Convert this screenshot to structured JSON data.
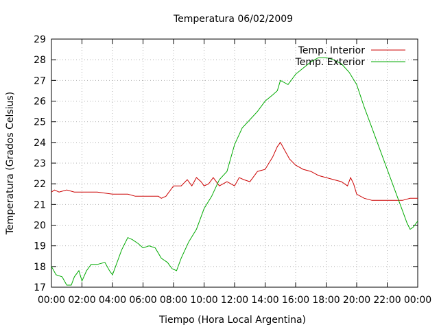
{
  "chart_data": {
    "type": "line",
    "title": "Temperatura 06/02/2009",
    "xlabel": "Tiempo (Hora Local Argentina)",
    "ylabel": "Temperatura (Grados Celsius)",
    "xlim": [
      0,
      24
    ],
    "ylim": [
      17,
      29
    ],
    "x_tick_labels": [
      "00:00",
      "02:00",
      "04:00",
      "06:00",
      "08:00",
      "10:00",
      "12:00",
      "14:00",
      "16:00",
      "18:00",
      "20:00",
      "22:00",
      "00:00"
    ],
    "y_ticks": [
      17,
      18,
      19,
      20,
      21,
      22,
      23,
      24,
      25,
      26,
      27,
      28,
      29
    ],
    "grid": true,
    "legend": "top-right",
    "series": [
      {
        "name": "Temp. Interior",
        "color": "#cc0000",
        "x": [
          0,
          0.2,
          0.5,
          1.0,
          1.5,
          2.0,
          3.0,
          4.0,
          5.0,
          5.5,
          6.0,
          7.0,
          7.2,
          7.5,
          8.0,
          8.5,
          8.9,
          9.2,
          9.5,
          9.8,
          10.0,
          10.3,
          10.6,
          11.0,
          11.5,
          12.0,
          12.3,
          12.6,
          13.0,
          13.5,
          14.0,
          14.5,
          14.8,
          15.0,
          15.3,
          15.6,
          16.0,
          16.5,
          17.0,
          17.5,
          18.0,
          18.5,
          19.0,
          19.4,
          19.6,
          19.8,
          20.0,
          20.5,
          21.0,
          22.0,
          23.0,
          23.5,
          24.0
        ],
        "y": [
          21.6,
          21.7,
          21.6,
          21.7,
          21.6,
          21.6,
          21.6,
          21.5,
          21.5,
          21.4,
          21.4,
          21.4,
          21.3,
          21.4,
          21.9,
          21.9,
          22.2,
          21.9,
          22.3,
          22.1,
          21.9,
          22.0,
          22.3,
          21.9,
          22.1,
          21.9,
          22.3,
          22.2,
          22.1,
          22.6,
          22.7,
          23.3,
          23.8,
          24.0,
          23.6,
          23.2,
          22.9,
          22.7,
          22.6,
          22.4,
          22.3,
          22.2,
          22.1,
          21.9,
          22.3,
          22.0,
          21.5,
          21.3,
          21.2,
          21.2,
          21.2,
          21.3,
          21.3
        ]
      },
      {
        "name": "Temp. Exterior",
        "color": "#00aa00",
        "x": [
          0,
          0.3,
          0.7,
          1.0,
          1.3,
          1.5,
          1.8,
          2.0,
          2.3,
          2.6,
          3.0,
          3.5,
          3.8,
          4.0,
          4.3,
          4.6,
          5.0,
          5.3,
          5.7,
          6.0,
          6.4,
          6.8,
          7.2,
          7.6,
          7.9,
          8.2,
          8.5,
          9.0,
          9.5,
          10.0,
          10.5,
          11.0,
          11.5,
          12.0,
          12.5,
          13.0,
          13.5,
          14.0,
          14.5,
          14.8,
          15.0,
          15.5,
          16.0,
          16.5,
          17.0,
          17.5,
          18.0,
          18.5,
          19.0,
          19.5,
          20.0,
          20.5,
          21.0,
          21.5,
          22.0,
          22.5,
          23.0,
          23.3,
          23.5,
          23.7,
          24.0
        ],
        "y": [
          18.0,
          17.6,
          17.5,
          17.1,
          17.1,
          17.5,
          17.8,
          17.3,
          17.8,
          18.1,
          18.1,
          18.2,
          17.8,
          17.6,
          18.2,
          18.8,
          19.4,
          19.3,
          19.1,
          18.9,
          19.0,
          18.9,
          18.4,
          18.2,
          17.9,
          17.8,
          18.4,
          19.2,
          19.8,
          20.8,
          21.4,
          22.2,
          22.6,
          23.9,
          24.7,
          25.1,
          25.5,
          26.0,
          26.3,
          26.5,
          27.0,
          26.8,
          27.3,
          27.6,
          27.9,
          28.1,
          28.1,
          28.0,
          27.8,
          27.4,
          26.8,
          25.7,
          24.7,
          23.7,
          22.7,
          21.7,
          20.7,
          20.1,
          19.8,
          19.9,
          20.2
        ]
      }
    ]
  }
}
